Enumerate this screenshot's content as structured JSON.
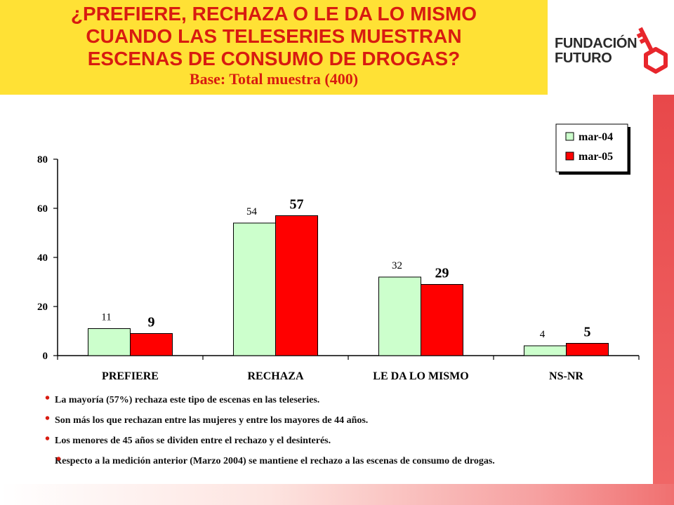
{
  "header": {
    "title_lines": [
      "¿PREFIERE, RECHAZA O LE DA LO MISMO",
      "CUANDO LAS TELESERIES MUESTRAN",
      "ESCENAS DE CONSUMO DE DROGAS?"
    ],
    "subtitle": "Base: Total muestra (400)"
  },
  "logo": {
    "line1": "FUNDACIÓN",
    "line2": "FUTURO",
    "colors": {
      "text": "#2a2a2a",
      "key": "#e8262c"
    },
    "icon": "key-icon"
  },
  "colors": {
    "title_bg": "#ffe135",
    "title_text": "#d81b10",
    "series_2004": "#ccffcc",
    "series_2005": "#ff0000"
  },
  "chart_data": {
    "type": "bar",
    "categories": [
      "PREFIERE",
      "RECHAZA",
      "LE DA LO MISMO",
      "NS-NR"
    ],
    "series": [
      {
        "name": "mar-04",
        "values": [
          11,
          54,
          32,
          4
        ],
        "color": "#ccffcc"
      },
      {
        "name": "mar-05",
        "values": [
          9,
          57,
          29,
          5
        ],
        "color": "#ff0000"
      }
    ],
    "ylim": [
      0,
      80
    ],
    "yticks": [
      0,
      20,
      40,
      60,
      80
    ],
    "legend": "top-right",
    "grid": false,
    "title": "",
    "xlabel": "",
    "ylabel": ""
  },
  "bullets": [
    "La mayoría (57%) rechaza este tipo de escenas en las teleseries.",
    "Son más los que rechazan entre las mujeres y entre los mayores de 44 años.",
    "Los menores de 45 años se dividen entre el rechazo y el desinterés.",
    "Respecto a la medición anterior (Marzo 2004) se mantiene el rechazo a las escenas de consumo de drogas."
  ]
}
